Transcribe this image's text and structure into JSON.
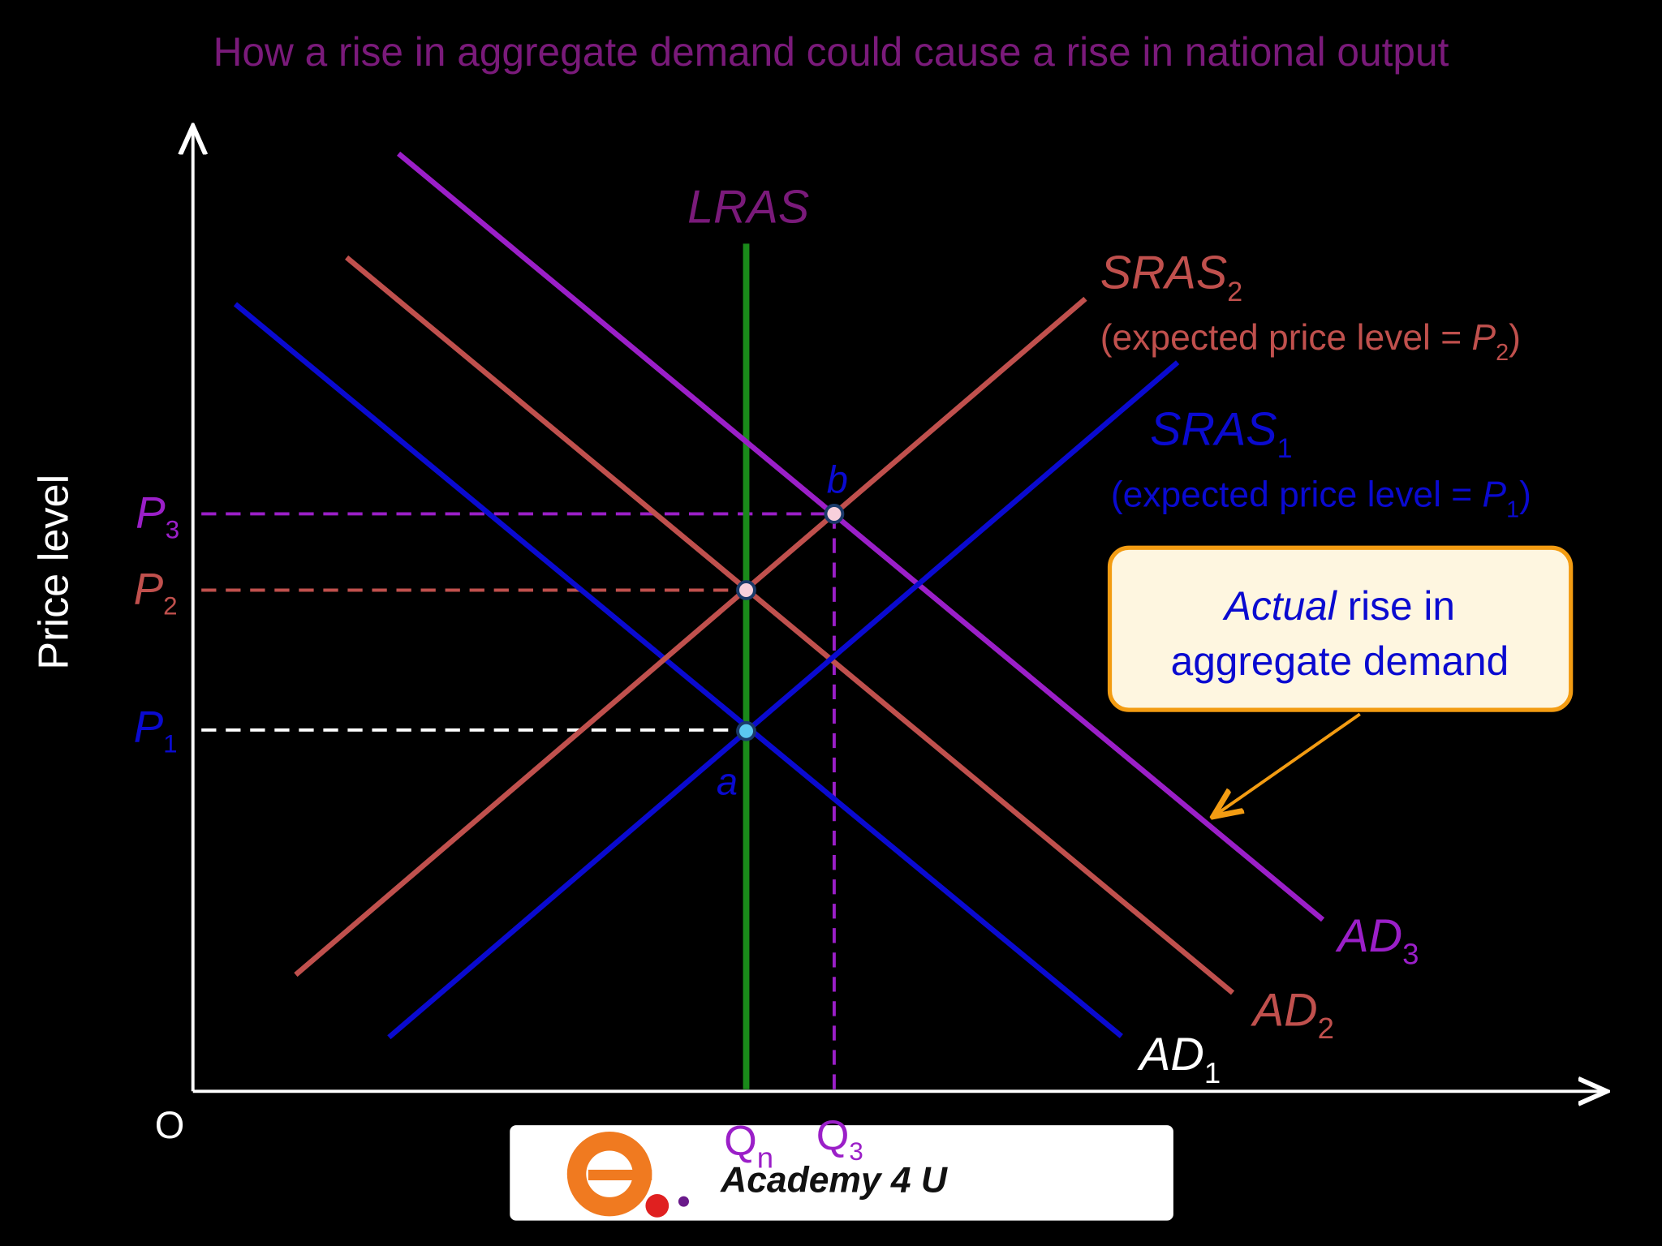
{
  "header": {
    "title": "How a rise in aggregate demand could cause a rise in national output"
  },
  "axes": {
    "y_label": "Price level",
    "origin": "O"
  },
  "curves": {
    "lras": "LRAS",
    "sras2": {
      "name": "SRAS",
      "sub": "2",
      "note": "(expected price level = ",
      "note_var": "P",
      "note_sub": "2",
      "note_end": ")"
    },
    "sras1": {
      "name": "SRAS",
      "sub": "1",
      "note": "(expected price level = ",
      "note_var": "P",
      "note_sub": "1",
      "note_end": ")"
    },
    "ad3": {
      "name": "AD",
      "sub": "3"
    },
    "ad2": {
      "name": "AD",
      "sub": "2"
    },
    "ad1": {
      "name": "AD",
      "sub": "1"
    }
  },
  "levels": {
    "p3": {
      "name": "P",
      "sub": "3"
    },
    "p2": {
      "name": "P",
      "sub": "2"
    },
    "p1": {
      "name": "P",
      "sub": "1"
    },
    "qn": {
      "name": "Q",
      "sub": "n"
    },
    "q3": {
      "name": "Q",
      "sub": "3"
    }
  },
  "points": {
    "a": "a",
    "b": "b"
  },
  "callout": {
    "emphasis": "Actual",
    "line1": " rise in",
    "line2": "aggregate demand"
  },
  "logo": {
    "text": "Academy 4 U"
  }
}
